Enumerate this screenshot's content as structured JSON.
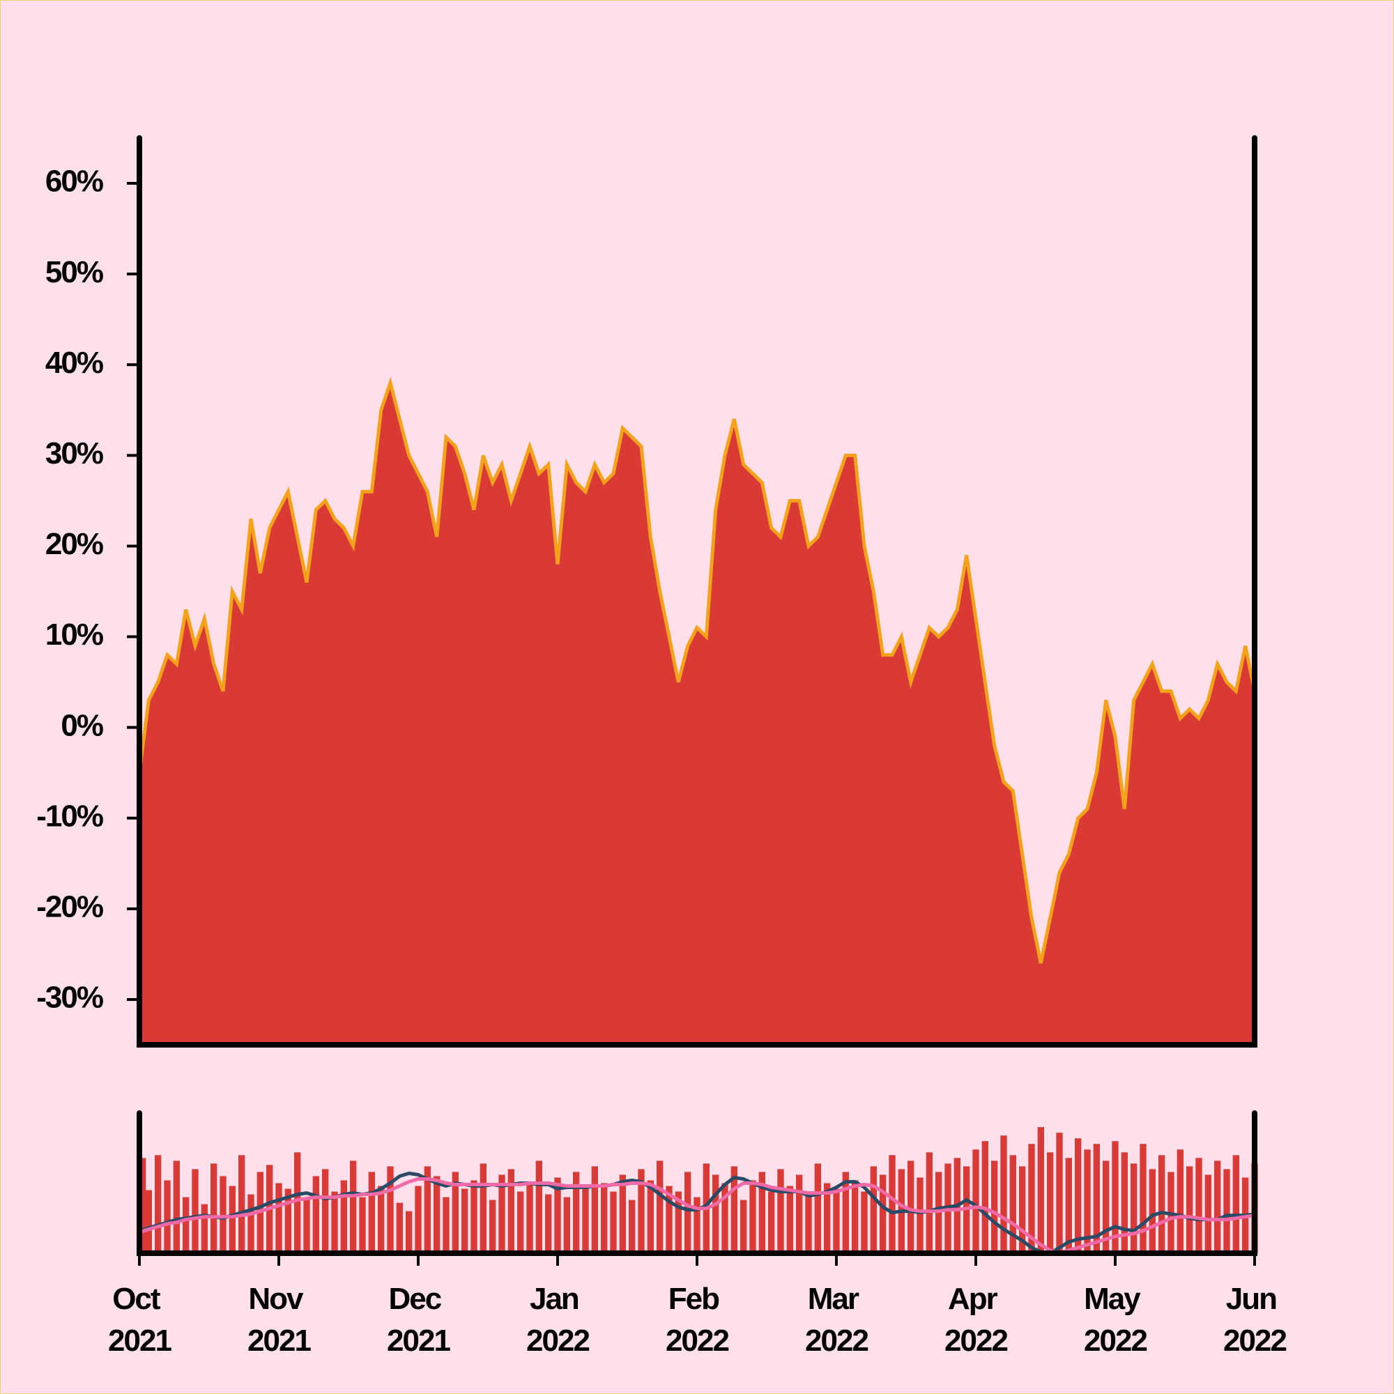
{
  "chart_data": [
    {
      "type": "area",
      "fill_color": "#d93a35",
      "color": "#f5a21b",
      "values": [
        -5,
        3,
        5,
        8,
        7,
        13,
        9,
        12,
        7,
        4,
        15,
        13,
        23,
        17,
        22,
        24,
        26,
        21,
        16,
        24,
        25,
        23,
        22,
        20,
        26,
        26,
        35,
        38,
        34,
        30,
        28,
        26,
        21,
        32,
        31,
        28,
        24,
        30,
        27,
        29,
        25,
        28,
        31,
        28,
        29,
        18,
        29,
        27,
        26,
        29,
        27,
        28,
        33,
        32,
        31,
        21,
        15,
        10,
        5,
        9,
        11,
        10,
        24,
        30,
        34,
        29,
        28,
        27,
        22,
        21,
        25,
        25,
        20,
        21,
        24,
        27,
        30,
        30,
        20,
        15,
        8,
        8,
        10,
        5,
        8,
        11,
        10,
        11,
        13,
        19,
        12,
        5,
        -2,
        -6,
        -7,
        -14,
        -21,
        -26,
        -21,
        -16,
        -14,
        -10,
        -9,
        -5,
        3,
        -1,
        -9,
        3,
        5,
        7,
        4,
        4,
        1,
        2,
        1,
        3,
        7,
        5,
        4,
        9,
        4
      ],
      "ylim": [
        -35,
        65
      ],
      "yticks": [
        {
          "value": -30,
          "label": "-30%"
        },
        {
          "value": -20,
          "label": "-20%"
        },
        {
          "value": -10,
          "label": "-10%"
        },
        {
          "value": 0,
          "label": "0%"
        },
        {
          "value": 10,
          "label": "10%"
        },
        {
          "value": 20,
          "label": "20%"
        },
        {
          "value": 30,
          "label": "30%"
        },
        {
          "value": 40,
          "label": "40%"
        },
        {
          "value": 50,
          "label": "50%"
        },
        {
          "value": 60,
          "label": "60%"
        }
      ]
    },
    {
      "type": "combo",
      "categories": [
        "Oct 2021",
        null,
        null,
        null,
        null,
        null,
        null,
        null,
        null,
        null,
        null,
        null,
        null,
        null,
        null,
        "Nov 2021",
        null,
        null,
        null,
        null,
        null,
        null,
        null,
        null,
        null,
        null,
        null,
        null,
        null,
        null,
        "Dec 2021",
        null,
        null,
        null,
        null,
        null,
        null,
        null,
        null,
        null,
        null,
        null,
        null,
        null,
        null,
        "Jan 2022",
        null,
        null,
        null,
        null,
        null,
        null,
        null,
        null,
        null,
        null,
        null,
        null,
        null,
        null,
        "Feb 2022",
        null,
        null,
        null,
        null,
        null,
        null,
        null,
        null,
        null,
        null,
        null,
        null,
        null,
        null,
        "Mar 2022",
        null,
        null,
        null,
        null,
        null,
        null,
        null,
        null,
        null,
        null,
        null,
        null,
        null,
        null,
        "Apr 2022",
        null,
        null,
        null,
        null,
        null,
        null,
        null,
        null,
        null,
        null,
        null,
        null,
        null,
        null,
        "May 2022",
        null,
        null,
        null,
        null,
        null,
        null,
        null,
        null,
        null,
        null,
        null,
        null,
        null,
        null,
        "Jun 2022"
      ],
      "ylim": [
        0,
        100
      ],
      "series": [
        {
          "type": "bar",
          "color": "#d93a35",
          "values": [
            68,
            45,
            70,
            52,
            66,
            40,
            60,
            35,
            64,
            55,
            48,
            70,
            42,
            58,
            63,
            50,
            46,
            72,
            38,
            55,
            60,
            44,
            52,
            66,
            40,
            58,
            48,
            62,
            36,
            30,
            48,
            62,
            55,
            40,
            58,
            46,
            52,
            64,
            38,
            56,
            60,
            44,
            50,
            66,
            42,
            54,
            40,
            58,
            46,
            62,
            50,
            44,
            56,
            38,
            60,
            52,
            66,
            48,
            44,
            58,
            40,
            64,
            56,
            50,
            62,
            38,
            52,
            58,
            44,
            60,
            48,
            56,
            42,
            64,
            50,
            46,
            58,
            52,
            44,
            62,
            56,
            70,
            60,
            66,
            54,
            72,
            58,
            64,
            68,
            62,
            74,
            80,
            66,
            84,
            70,
            62,
            78,
            90,
            72,
            86,
            68,
            82,
            74,
            78,
            66,
            80,
            72,
            64,
            78,
            60,
            70,
            58,
            74,
            62,
            68,
            56,
            66,
            60,
            70,
            54,
            64
          ]
        },
        {
          "type": "line",
          "color": "#2b4a66",
          "values": [
            16,
            18,
            20,
            22,
            24,
            25,
            26,
            27,
            26,
            25,
            27,
            29,
            31,
            33,
            36,
            38,
            40,
            42,
            43,
            41,
            39,
            40,
            42,
            43,
            42,
            43,
            46,
            50,
            55,
            57,
            56,
            53,
            50,
            48,
            50,
            49,
            48,
            48,
            49,
            48,
            49,
            50,
            50,
            49,
            49,
            46,
            47,
            47,
            47,
            48,
            48,
            49,
            51,
            52,
            51,
            47,
            42,
            37,
            33,
            31,
            31,
            34,
            42,
            49,
            54,
            53,
            50,
            47,
            45,
            44,
            44,
            44,
            41,
            42,
            44,
            47,
            51,
            51,
            47,
            40,
            33,
            29,
            30,
            30,
            29,
            30,
            32,
            33,
            34,
            38,
            34,
            28,
            22,
            17,
            13,
            9,
            4,
            1,
            0,
            4,
            8,
            10,
            11,
            12,
            16,
            19,
            17,
            16,
            21,
            27,
            29,
            28,
            27,
            25,
            24,
            24,
            24,
            27,
            27,
            27,
            28
          ]
        },
        {
          "type": "line",
          "color": "#f06aa8",
          "values": [
            15,
            17,
            19,
            21,
            22,
            24,
            25,
            26,
            26,
            26,
            26,
            27,
            28,
            30,
            32,
            34,
            36,
            38,
            39,
            40,
            40,
            40,
            41,
            41,
            42,
            42,
            43,
            45,
            48,
            51,
            53,
            53,
            52,
            50,
            49,
            49,
            49,
            49,
            49,
            49,
            49,
            49,
            50,
            50,
            50,
            49,
            48,
            48,
            48,
            48,
            48,
            49,
            49,
            50,
            50,
            49,
            46,
            42,
            38,
            34,
            32,
            32,
            35,
            40,
            46,
            50,
            50,
            49,
            47,
            46,
            45,
            44,
            43,
            43,
            43,
            44,
            46,
            48,
            49,
            48,
            44,
            39,
            34,
            31,
            30,
            30,
            30,
            31,
            31,
            32,
            33,
            32,
            29,
            25,
            21,
            16,
            11,
            6,
            2,
            0,
            2,
            4,
            6,
            8,
            10,
            12,
            13,
            14,
            16,
            19,
            22,
            25,
            26,
            26,
            25,
            24,
            24,
            24,
            25,
            26,
            27
          ]
        }
      ]
    }
  ]
}
